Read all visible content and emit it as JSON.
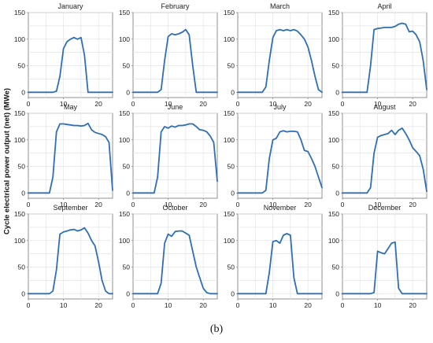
{
  "figure": {
    "y_axis_title": "Cycle electrical power output (net) (MWe)",
    "caption": "(b)"
  },
  "style": {
    "line_color": "#2f6fb5",
    "grid_color": "#e4e4e4",
    "axis_color": "#777777",
    "text_color": "#222222"
  },
  "chart_data": [
    {
      "type": "line",
      "title": "January",
      "xlim": [
        0,
        24
      ],
      "ylim": [
        -10,
        150
      ],
      "xticks": [
        0,
        10,
        20
      ],
      "yticks": [
        0,
        50,
        100,
        150
      ],
      "grid": true,
      "x": [
        0,
        4,
        7,
        8,
        9,
        10,
        11,
        12,
        13,
        14,
        15,
        16,
        17,
        24
      ],
      "y": [
        0,
        0,
        0,
        2,
        30,
        82,
        95,
        100,
        103,
        100,
        103,
        70,
        0,
        0
      ]
    },
    {
      "type": "line",
      "title": "February",
      "xlim": [
        0,
        24
      ],
      "ylim": [
        -10,
        150
      ],
      "xticks": [
        0,
        10,
        20
      ],
      "yticks": [
        0,
        50,
        100,
        150
      ],
      "grid": true,
      "x": [
        0,
        7,
        8,
        9,
        10,
        11,
        12,
        13,
        14,
        15,
        16,
        17,
        18,
        24
      ],
      "y": [
        0,
        0,
        5,
        60,
        105,
        110,
        108,
        110,
        113,
        118,
        108,
        50,
        0,
        0
      ]
    },
    {
      "type": "line",
      "title": "March",
      "xlim": [
        0,
        24
      ],
      "ylim": [
        -10,
        150
      ],
      "xticks": [
        0,
        10,
        20
      ],
      "yticks": [
        0,
        50,
        100,
        150
      ],
      "grid": true,
      "x": [
        0,
        7,
        8,
        9,
        10,
        11,
        12,
        13,
        14,
        15,
        16,
        17,
        18,
        19,
        20,
        21,
        22,
        23,
        24
      ],
      "y": [
        0,
        0,
        10,
        60,
        103,
        116,
        118,
        116,
        118,
        116,
        118,
        115,
        108,
        100,
        85,
        60,
        30,
        5,
        0
      ]
    },
    {
      "type": "line",
      "title": "April",
      "xlim": [
        0,
        24
      ],
      "ylim": [
        -10,
        150
      ],
      "xticks": [
        0,
        10,
        20
      ],
      "yticks": [
        0,
        50,
        100,
        150
      ],
      "grid": true,
      "x": [
        0,
        7,
        8,
        9,
        10,
        11,
        12,
        13,
        14,
        15,
        16,
        17,
        18,
        19,
        20,
        21,
        22,
        23,
        24
      ],
      "y": [
        0,
        0,
        50,
        118,
        120,
        121,
        122,
        122,
        122,
        124,
        128,
        130,
        128,
        114,
        115,
        108,
        95,
        60,
        5
      ]
    },
    {
      "type": "line",
      "title": "May",
      "xlim": [
        0,
        24
      ],
      "ylim": [
        -10,
        150
      ],
      "xticks": [
        0,
        10,
        20
      ],
      "yticks": [
        0,
        50,
        100,
        150
      ],
      "grid": true,
      "x": [
        0,
        6,
        7,
        8,
        9,
        10,
        11,
        12,
        13,
        14,
        15,
        16,
        17,
        18,
        19,
        20,
        21,
        22,
        23,
        24
      ],
      "y": [
        0,
        0,
        30,
        115,
        130,
        130,
        129,
        128,
        127,
        127,
        126,
        127,
        131,
        119,
        114,
        112,
        110,
        106,
        95,
        5
      ]
    },
    {
      "type": "line",
      "title": "June",
      "xlim": [
        0,
        24
      ],
      "ylim": [
        -10,
        150
      ],
      "xticks": [
        0,
        10,
        20
      ],
      "yticks": [
        0,
        50,
        100,
        150
      ],
      "grid": true,
      "x": [
        0,
        6,
        7,
        8,
        9,
        10,
        11,
        12,
        13,
        14,
        15,
        16,
        17,
        18,
        19,
        20,
        21,
        22,
        23,
        24
      ],
      "y": [
        0,
        0,
        30,
        115,
        125,
        122,
        126,
        124,
        127,
        127,
        128,
        130,
        130,
        125,
        119,
        118,
        115,
        107,
        95,
        22
      ]
    },
    {
      "type": "line",
      "title": "July",
      "xlim": [
        0,
        24
      ],
      "ylim": [
        -10,
        150
      ],
      "xticks": [
        0,
        10,
        20
      ],
      "yticks": [
        0,
        50,
        100,
        150
      ],
      "grid": true,
      "x": [
        0,
        7,
        8,
        9,
        10,
        11,
        12,
        13,
        14,
        15,
        16,
        17,
        18,
        19,
        20,
        21,
        22,
        23,
        24
      ],
      "y": [
        0,
        0,
        5,
        65,
        100,
        103,
        115,
        117,
        115,
        116,
        116,
        115,
        100,
        80,
        78,
        65,
        50,
        30,
        10
      ]
    },
    {
      "type": "line",
      "title": "August",
      "xlim": [
        0,
        24
      ],
      "ylim": [
        -10,
        150
      ],
      "xticks": [
        0,
        10,
        20
      ],
      "yticks": [
        0,
        50,
        100,
        150
      ],
      "grid": true,
      "x": [
        0,
        7,
        8,
        9,
        10,
        11,
        12,
        13,
        14,
        15,
        16,
        17,
        18,
        19,
        20,
        21,
        22,
        23,
        24
      ],
      "y": [
        0,
        0,
        10,
        75,
        105,
        108,
        110,
        112,
        118,
        110,
        118,
        122,
        112,
        100,
        85,
        78,
        70,
        45,
        3
      ]
    },
    {
      "type": "line",
      "title": "September",
      "xlim": [
        0,
        24
      ],
      "ylim": [
        -10,
        150
      ],
      "xticks": [
        0,
        10,
        20
      ],
      "yticks": [
        0,
        50,
        100,
        150
      ],
      "grid": true,
      "x": [
        0,
        6,
        7,
        8,
        9,
        10,
        11,
        12,
        13,
        14,
        15,
        16,
        17,
        18,
        19,
        20,
        21,
        22,
        23,
        24
      ],
      "y": [
        0,
        0,
        5,
        45,
        112,
        116,
        118,
        120,
        121,
        118,
        120,
        124,
        114,
        100,
        90,
        60,
        25,
        5,
        0,
        0
      ]
    },
    {
      "type": "line",
      "title": "October",
      "xlim": [
        0,
        24
      ],
      "ylim": [
        -10,
        150
      ],
      "xticks": [
        0,
        10,
        20
      ],
      "yticks": [
        0,
        50,
        100,
        150
      ],
      "grid": true,
      "x": [
        0,
        7,
        8,
        9,
        10,
        11,
        12,
        13,
        14,
        15,
        16,
        17,
        18,
        19,
        20,
        21,
        22,
        24
      ],
      "y": [
        0,
        0,
        20,
        95,
        112,
        108,
        117,
        118,
        118,
        114,
        110,
        80,
        50,
        30,
        10,
        2,
        0,
        0
      ]
    },
    {
      "type": "line",
      "title": "November",
      "xlim": [
        0,
        24
      ],
      "ylim": [
        -10,
        150
      ],
      "xticks": [
        0,
        10,
        20
      ],
      "yticks": [
        0,
        50,
        100,
        150
      ],
      "grid": true,
      "x": [
        0,
        8,
        9,
        10,
        11,
        12,
        13,
        14,
        15,
        16,
        17,
        24
      ],
      "y": [
        0,
        0,
        40,
        98,
        100,
        95,
        110,
        113,
        110,
        30,
        0,
        0
      ]
    },
    {
      "type": "line",
      "title": "December",
      "xlim": [
        0,
        24
      ],
      "ylim": [
        -10,
        150
      ],
      "xticks": [
        0,
        10,
        20
      ],
      "yticks": [
        0,
        50,
        100,
        150
      ],
      "grid": true,
      "x": [
        0,
        8,
        9,
        10,
        11,
        12,
        13,
        14,
        15,
        16,
        17,
        24
      ],
      "y": [
        0,
        0,
        2,
        80,
        77,
        75,
        85,
        95,
        97,
        10,
        0,
        0
      ]
    }
  ]
}
